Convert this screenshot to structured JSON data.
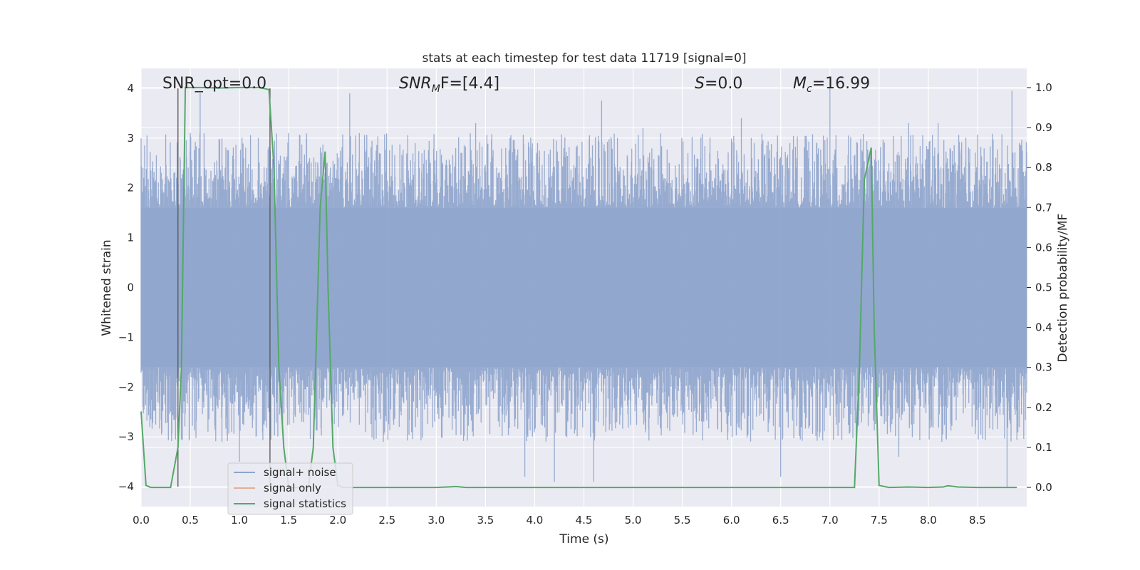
{
  "chart_data": {
    "type": "line",
    "title": "stats at each timestep for test data 11719 [signal=0]",
    "xlabel": "Time (s)",
    "ylabel_left": "Whitened strain",
    "ylabel_right": "Detection probability/MF",
    "xlim": [
      0.0,
      9.0
    ],
    "ylim_left": [
      -4.4,
      4.4
    ],
    "ylim_right": [
      -0.048,
      1.048
    ],
    "x_ticks": [
      "0.0",
      "0.5",
      "1.0",
      "1.5",
      "2.0",
      "2.5",
      "3.0",
      "3.5",
      "4.0",
      "4.5",
      "5.0",
      "5.5",
      "6.0",
      "6.5",
      "7.0",
      "7.5",
      "8.0",
      "8.5"
    ],
    "y_ticks_left": [
      "−4",
      "−3",
      "−2",
      "−1",
      "0",
      "1",
      "2",
      "3",
      "4"
    ],
    "y_ticks_right": [
      "0.0",
      "0.1",
      "0.2",
      "0.3",
      "0.4",
      "0.5",
      "0.6",
      "0.7",
      "0.8",
      "0.9",
      "1.0"
    ],
    "grid": true,
    "legend_position": "lower-left",
    "annotations": {
      "snr_opt": "SNR_opt=0.0",
      "snr_mf": "SNR",
      "snr_mf_sub": "M",
      "snr_mf_rest": "F=[4.4]",
      "s_name": "S",
      "s_value": "=0.0",
      "mc_name": "M",
      "mc_sub": "c",
      "mc_value": "=16.99"
    },
    "vertical_lines_x": [
      0.375,
      1.31
    ],
    "noise_envelope": {
      "core_amplitude": 1.6,
      "spike_peaks": [
        [
          0.06,
          3.05
        ],
        [
          0.5,
          3.1
        ],
        [
          0.6,
          3.9
        ],
        [
          2.12,
          3.9
        ],
        [
          3.4,
          3.3
        ],
        [
          4.68,
          3.75
        ],
        [
          5.1,
          3.2
        ],
        [
          6.1,
          3.4
        ],
        [
          7.0,
          4.0
        ],
        [
          7.8,
          3.3
        ],
        [
          8.1,
          3.3
        ],
        [
          8.85,
          3.95
        ],
        [
          0.35,
          -3.05
        ],
        [
          1.0,
          -3.5
        ],
        [
          3.9,
          -3.8
        ],
        [
          4.2,
          -3.9
        ],
        [
          4.6,
          -3.9
        ],
        [
          6.5,
          -3.8
        ],
        [
          7.7,
          -3.4
        ],
        [
          8.8,
          -4.0
        ]
      ]
    },
    "series": [
      {
        "name": "signal+ noise",
        "color": "#8ea4cc"
      },
      {
        "name": "signal only",
        "color": "#dd8452",
        "x": [],
        "y": []
      },
      {
        "name": "signal statistics",
        "color": "#55a868",
        "x": [
          0.0,
          0.05,
          0.1,
          0.2,
          0.3,
          0.375,
          0.41,
          0.45,
          0.5,
          0.6,
          0.8,
          1.0,
          1.2,
          1.3,
          1.35,
          1.4,
          1.45,
          1.5,
          1.6,
          1.7,
          1.75,
          1.82,
          1.87,
          1.9,
          1.95,
          2.0,
          2.05,
          2.1,
          2.5,
          3.0,
          3.2,
          3.3,
          3.5,
          4.0,
          5.0,
          6.0,
          7.0,
          7.25,
          7.3,
          7.35,
          7.42,
          7.45,
          7.5,
          7.6,
          7.8,
          8.0,
          8.15,
          8.2,
          8.3,
          8.5,
          8.9
        ],
        "y": [
          0.19,
          0.005,
          0.0,
          0.0,
          0.0,
          0.1,
          0.3,
          1.0,
          1.0,
          1.0,
          0.999,
          1.0,
          1.0,
          0.995,
          0.8,
          0.3,
          0.1,
          0.0,
          0.0,
          0.0,
          0.1,
          0.7,
          0.84,
          0.5,
          0.1,
          0.005,
          0.0,
          0.0,
          0.0,
          0.0,
          0.002,
          0.0,
          0.0,
          0.0,
          0.0,
          0.0,
          0.0,
          0.0,
          0.3,
          0.77,
          0.85,
          0.4,
          0.005,
          0.0,
          0.001,
          0.0,
          0.001,
          0.004,
          0.001,
          0.0,
          0.0
        ]
      }
    ]
  }
}
